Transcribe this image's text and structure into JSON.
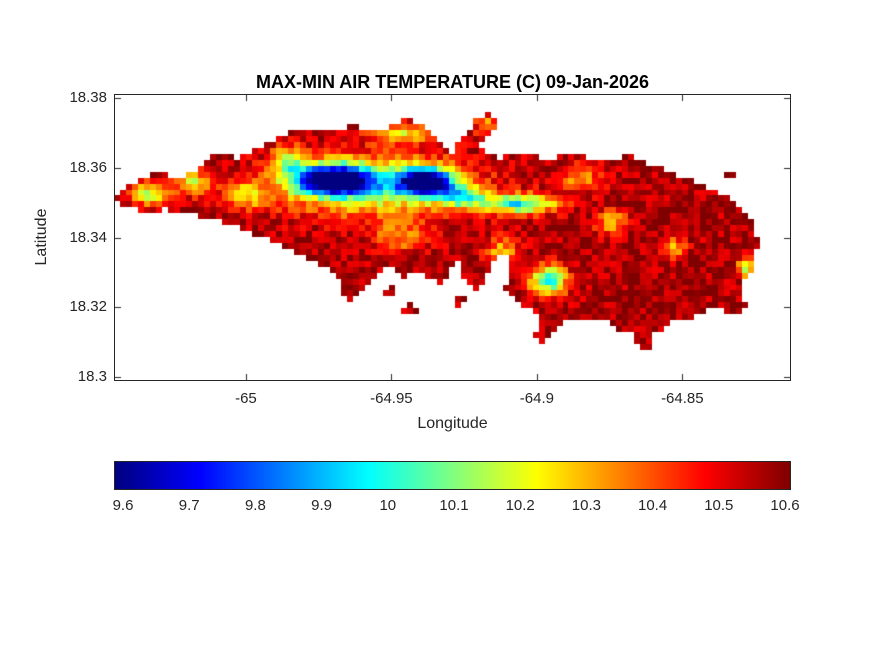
{
  "figure": {
    "background": "#ffffff",
    "axis_color": "#262626",
    "title_color": "#000000"
  },
  "chart_data": {
    "type": "heatmap",
    "title": "MAX-MIN AIR TEMPERATURE (C) 09-Jan-2026",
    "xlabel": "Longitude",
    "ylabel": "Latitude",
    "units": "C",
    "colormap": "jet",
    "xlim": [
      -65.045,
      -64.813
    ],
    "ylim": [
      18.299,
      18.381
    ],
    "x_ticks": [
      {
        "value": -65,
        "label": "-65"
      },
      {
        "value": -64.95,
        "label": "-64.95"
      },
      {
        "value": -64.9,
        "label": "-64.9"
      },
      {
        "value": -64.85,
        "label": "-64.85"
      }
    ],
    "y_ticks": [
      {
        "value": 18.3,
        "label": "18.3"
      },
      {
        "value": 18.32,
        "label": "18.32"
      },
      {
        "value": 18.34,
        "label": "18.34"
      },
      {
        "value": 18.36,
        "label": "18.36"
      },
      {
        "value": 18.38,
        "label": "18.38"
      }
    ],
    "value_range": [
      9.6,
      10.6
    ],
    "colorbar": {
      "orientation": "horizontal",
      "ticks": [
        {
          "value": 9.6,
          "label": "9.6"
        },
        {
          "value": 9.7,
          "label": "9.7"
        },
        {
          "value": 9.8,
          "label": "9.8"
        },
        {
          "value": 9.9,
          "label": "9.9"
        },
        {
          "value": 10,
          "label": "10"
        },
        {
          "value": 10.1,
          "label": "10.1"
        },
        {
          "value": 10.2,
          "label": "10.2"
        },
        {
          "value": 10.3,
          "label": "10.3"
        },
        {
          "value": 10.4,
          "label": "10.4"
        },
        {
          "value": 10.5,
          "label": "10.5"
        },
        {
          "value": 10.6,
          "label": "10.6"
        }
      ]
    },
    "grid": {
      "cols": 113,
      "rows": 48
    },
    "field": {
      "base": 10.56,
      "noise_amplitude": 0.16,
      "anomalies": [
        {
          "lon": -64.97,
          "lat": 18.3565,
          "slon": 0.013,
          "slat": 0.0042,
          "amp": -1.05
        },
        {
          "lon": -64.938,
          "lat": 18.356,
          "slon": 0.009,
          "slat": 0.0038,
          "amp": -1.0
        },
        {
          "lon": -64.955,
          "lat": 18.3545,
          "slon": 0.032,
          "slat": 0.0085,
          "amp": -0.45
        },
        {
          "lon": -64.906,
          "lat": 18.3495,
          "slon": 0.013,
          "slat": 0.0028,
          "amp": -0.55
        },
        {
          "lon": -64.926,
          "lat": 18.3515,
          "slon": 0.008,
          "slat": 0.003,
          "amp": -0.4
        },
        {
          "lon": -64.896,
          "lat": 18.3275,
          "slon": 0.0065,
          "slat": 0.0045,
          "amp": -0.55
        },
        {
          "lon": -65.033,
          "lat": 18.3525,
          "slon": 0.0065,
          "slat": 0.0035,
          "amp": -0.4
        },
        {
          "lon": -65.018,
          "lat": 18.3555,
          "slon": 0.006,
          "slat": 0.0035,
          "amp": -0.35
        },
        {
          "lon": -65.0,
          "lat": 18.352,
          "slon": 0.007,
          "slat": 0.004,
          "amp": -0.3
        },
        {
          "lon": -64.985,
          "lat": 18.362,
          "slon": 0.006,
          "slat": 0.004,
          "amp": -0.35
        },
        {
          "lon": -64.945,
          "lat": 18.37,
          "slon": 0.012,
          "slat": 0.003,
          "amp": -0.3
        },
        {
          "lon": -64.917,
          "lat": 18.372,
          "slon": 0.004,
          "slat": 0.003,
          "amp": -0.25
        },
        {
          "lon": -64.885,
          "lat": 18.357,
          "slon": 0.008,
          "slat": 0.004,
          "amp": -0.22
        },
        {
          "lon": -64.874,
          "lat": 18.344,
          "slon": 0.005,
          "slat": 0.0035,
          "amp": -0.3
        },
        {
          "lon": -64.853,
          "lat": 18.337,
          "slon": 0.0045,
          "slat": 0.003,
          "amp": -0.28
        },
        {
          "lon": -64.828,
          "lat": 18.331,
          "slon": 0.003,
          "slat": 0.0025,
          "amp": -0.45
        },
        {
          "lon": -64.912,
          "lat": 18.336,
          "slon": 0.006,
          "slat": 0.004,
          "amp": -0.25
        },
        {
          "lon": -64.946,
          "lat": 18.34,
          "slon": 0.01,
          "slat": 0.004,
          "amp": -0.22
        }
      ]
    },
    "island": {
      "main": [
        [
          -65.0445,
          18.3507
        ],
        [
          -65.0403,
          18.355
        ],
        [
          -65.0317,
          18.3587
        ],
        [
          -65.0214,
          18.3569
        ],
        [
          -65.0162,
          18.3598
        ],
        [
          -65.0086,
          18.3649
        ],
        [
          -65.0024,
          18.3626
        ],
        [
          -64.9972,
          18.3655
        ],
        [
          -64.9869,
          18.3692
        ],
        [
          -64.9817,
          18.3712
        ],
        [
          -64.9714,
          18.3698
        ],
        [
          -64.9628,
          18.372
        ],
        [
          -64.9541,
          18.3706
        ],
        [
          -64.9455,
          18.374
        ],
        [
          -64.9386,
          18.372
        ],
        [
          -64.9334,
          18.3678
        ],
        [
          -64.9293,
          18.3635
        ],
        [
          -64.9266,
          18.3678
        ],
        [
          -64.9203,
          18.374
        ],
        [
          -64.9155,
          18.3757
        ],
        [
          -64.9134,
          18.372
        ],
        [
          -64.9203,
          18.3655
        ],
        [
          -64.9128,
          18.3626
        ],
        [
          -64.9059,
          18.3649
        ],
        [
          -64.8972,
          18.3621
        ],
        [
          -64.8869,
          18.3643
        ],
        [
          -64.8783,
          18.3621
        ],
        [
          -64.8679,
          18.3635
        ],
        [
          -64.8593,
          18.3606
        ],
        [
          -64.8507,
          18.3578
        ],
        [
          -64.8421,
          18.3549
        ],
        [
          -64.8334,
          18.3507
        ],
        [
          -64.8266,
          18.345
        ],
        [
          -64.8238,
          18.3379
        ],
        [
          -64.8259,
          18.3308
        ],
        [
          -64.83,
          18.3251
        ],
        [
          -64.8272,
          18.3194
        ],
        [
          -64.8317,
          18.3171
        ],
        [
          -64.8386,
          18.3194
        ],
        [
          -64.8455,
          18.3171
        ],
        [
          -64.8541,
          18.3151
        ],
        [
          -64.861,
          18.3108
        ],
        [
          -64.8593,
          18.3066
        ],
        [
          -64.8645,
          18.3074
        ],
        [
          -64.8662,
          18.3123
        ],
        [
          -64.8731,
          18.3137
        ],
        [
          -64.8783,
          18.3171
        ],
        [
          -64.8834,
          18.3151
        ],
        [
          -64.8886,
          18.3171
        ],
        [
          -64.8921,
          18.3137
        ],
        [
          -64.8972,
          18.3094
        ],
        [
          -64.9007,
          18.3108
        ],
        [
          -64.899,
          18.3159
        ],
        [
          -64.9031,
          18.3194
        ],
        [
          -64.9076,
          18.3222
        ],
        [
          -64.911,
          18.3256
        ],
        [
          -64.9086,
          18.3307
        ],
        [
          -64.911,
          18.335
        ],
        [
          -64.9145,
          18.333
        ],
        [
          -64.9169,
          18.3285
        ],
        [
          -64.9203,
          18.3251
        ],
        [
          -64.9248,
          18.3285
        ],
        [
          -64.9272,
          18.333
        ],
        [
          -64.93,
          18.3293
        ],
        [
          -64.9334,
          18.3265
        ],
        [
          -64.9369,
          18.3285
        ],
        [
          -64.9403,
          18.3307
        ],
        [
          -64.9455,
          18.3285
        ],
        [
          -64.9507,
          18.3313
        ],
        [
          -64.9559,
          18.3285
        ],
        [
          -64.961,
          18.3236
        ],
        [
          -64.9638,
          18.3208
        ],
        [
          -64.9662,
          18.3228
        ],
        [
          -64.9679,
          18.3273
        ],
        [
          -64.9714,
          18.3307
        ],
        [
          -64.9755,
          18.333
        ],
        [
          -64.9817,
          18.335
        ],
        [
          -64.9869,
          18.337
        ],
        [
          -64.9921,
          18.3393
        ],
        [
          -64.9972,
          18.3407
        ],
        [
          -65.0024,
          18.3427
        ],
        [
          -65.0076,
          18.3444
        ],
        [
          -65.0128,
          18.3455
        ],
        [
          -65.0179,
          18.3464
        ],
        [
          -65.0231,
          18.3472
        ],
        [
          -65.0283,
          18.3478
        ],
        [
          -65.0334,
          18.3472
        ],
        [
          -65.0386,
          18.3478
        ],
        [
          -65.0421,
          18.3492
        ]
      ],
      "islets": [
        [
          [
            -64.8365,
            18.3585
          ],
          [
            -64.833,
            18.3598
          ],
          [
            -64.83,
            18.3575
          ],
          [
            -64.834,
            18.3558
          ]
        ],
        [
          [
            -64.9465,
            18.3198
          ],
          [
            -64.9428,
            18.3212
          ],
          [
            -64.9403,
            18.3185
          ],
          [
            -64.9445,
            18.317
          ]
        ],
        [
          [
            -64.953,
            18.3248
          ],
          [
            -64.9498,
            18.3262
          ],
          [
            -64.9478,
            18.3235
          ],
          [
            -64.9515,
            18.322
          ]
        ],
        [
          [
            -64.9292,
            18.3228
          ],
          [
            -64.9258,
            18.3242
          ],
          [
            -64.9238,
            18.3214
          ],
          [
            -64.9275,
            18.32
          ]
        ]
      ]
    }
  }
}
